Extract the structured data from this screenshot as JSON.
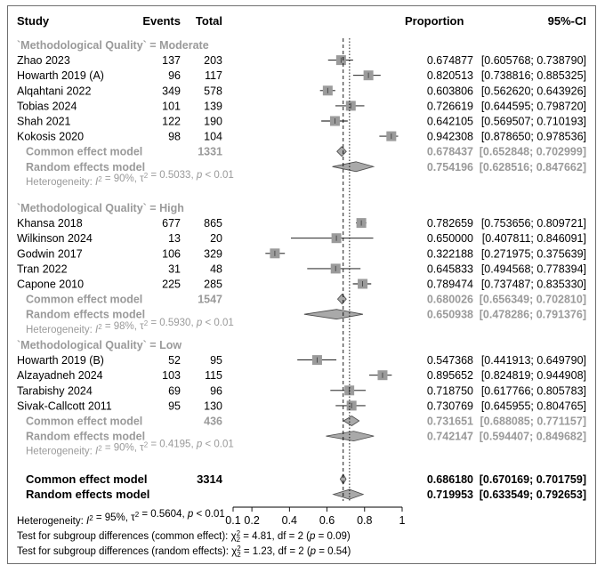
{
  "header": {
    "study": "Study",
    "events": "Events",
    "total": "Total",
    "proportion": "Proportion",
    "ci": "95%-CI"
  },
  "chart_data": {
    "type": "forest",
    "x_ticks": [
      "0.1",
      "0.2",
      "0.4",
      "0.6",
      "0.8",
      "1"
    ],
    "x_tick_values": [
      0.1,
      0.2,
      0.4,
      0.6,
      0.8,
      1.0
    ],
    "xlim": [
      0.1,
      1.0
    ],
    "common_line": 0.68618,
    "random_line": 0.719953,
    "colors": {
      "square": "#9b9b9b",
      "diamond": "#a9a9a9",
      "summary_text": "#9a9a9a",
      "line": "#000000"
    },
    "groups": [
      {
        "label": "`Methodological Quality` = Moderate",
        "studies": [
          {
            "name": "Zhao 2023",
            "events": "137",
            "total": "203",
            "prop": 0.674877,
            "lo": 0.605768,
            "hi": 0.73879,
            "prop_text": "0.674877",
            "ci_text": "[0.605768; 0.738790]"
          },
          {
            "name": "Howarth 2019 (A)",
            "events": "96",
            "total": "117",
            "prop": 0.820513,
            "lo": 0.738816,
            "hi": 0.885325,
            "prop_text": "0.820513",
            "ci_text": "[0.738816; 0.885325]"
          },
          {
            "name": "Alqahtani 2022",
            "events": "349",
            "total": "578",
            "prop": 0.603806,
            "lo": 0.56262,
            "hi": 0.643926,
            "prop_text": "0.603806",
            "ci_text": "[0.562620; 0.643926]"
          },
          {
            "name": "Tobias 2024",
            "events": "101",
            "total": "139",
            "prop": 0.726619,
            "lo": 0.644595,
            "hi": 0.79872,
            "prop_text": "0.726619",
            "ci_text": "[0.644595; 0.798720]"
          },
          {
            "name": "Shah 2021",
            "events": "122",
            "total": "190",
            "prop": 0.642105,
            "lo": 0.569507,
            "hi": 0.710193,
            "prop_text": "0.642105",
            "ci_text": "[0.569507; 0.710193]"
          },
          {
            "name": "Kokosis 2020",
            "events": "98",
            "total": "104",
            "prop": 0.942308,
            "lo": 0.87865,
            "hi": 0.978536,
            "prop_text": "0.942308",
            "ci_text": "[0.878650; 0.978536]"
          }
        ],
        "common": {
          "label": "Common effect model",
          "total": "1331",
          "prop": 0.678437,
          "lo": 0.652848,
          "hi": 0.702999,
          "prop_text": "0.678437",
          "ci_text": "[0.652848; 0.702999]"
        },
        "random": {
          "label": "Random effects model",
          "prop": 0.754196,
          "lo": 0.628516,
          "hi": 0.847662,
          "prop_text": "0.754196",
          "ci_text": "[0.628516; 0.847662]"
        },
        "heterogeneity": {
          "i2": "90%",
          "tau2": "0.5033",
          "p": "< 0.01"
        }
      },
      {
        "label": "`Methodological Quality` = High",
        "studies": [
          {
            "name": "Khansa 2018",
            "events": "677",
            "total": "865",
            "prop": 0.782659,
            "lo": 0.753656,
            "hi": 0.809721,
            "prop_text": "0.782659",
            "ci_text": "[0.753656; 0.809721]"
          },
          {
            "name": "Wilkinson 2024",
            "events": "13",
            "total": "20",
            "prop": 0.65,
            "lo": 0.407811,
            "hi": 0.846091,
            "prop_text": "0.650000",
            "ci_text": "[0.407811; 0.846091]"
          },
          {
            "name": "Godwin 2017",
            "events": "106",
            "total": "329",
            "prop": 0.322188,
            "lo": 0.271975,
            "hi": 0.375639,
            "prop_text": "0.322188",
            "ci_text": "[0.271975; 0.375639]"
          },
          {
            "name": "Tran 2022",
            "events": "31",
            "total": "48",
            "prop": 0.645833,
            "lo": 0.494568,
            "hi": 0.778394,
            "prop_text": "0.645833",
            "ci_text": "[0.494568; 0.778394]"
          },
          {
            "name": "Capone 2010",
            "events": "225",
            "total": "285",
            "prop": 0.789474,
            "lo": 0.737487,
            "hi": 0.83533,
            "prop_text": "0.789474",
            "ci_text": "[0.737487; 0.835330]"
          }
        ],
        "common": {
          "label": "Common effect model",
          "total": "1547",
          "prop": 0.680026,
          "lo": 0.656349,
          "hi": 0.70281,
          "prop_text": "0.680026",
          "ci_text": "[0.656349; 0.702810]"
        },
        "random": {
          "label": "Random effects model",
          "prop": 0.650938,
          "lo": 0.478286,
          "hi": 0.791376,
          "prop_text": "0.650938",
          "ci_text": "[0.478286; 0.791376]"
        },
        "heterogeneity": {
          "i2": "98%",
          "tau2": "0.5930",
          "p": "< 0.01"
        }
      },
      {
        "label": "`Methodological Quality` = Low",
        "studies": [
          {
            "name": "Howarth 2019 (B)",
            "events": "52",
            "total": "95",
            "prop": 0.547368,
            "lo": 0.441913,
            "hi": 0.64979,
            "prop_text": "0.547368",
            "ci_text": "[0.441913; 0.649790]"
          },
          {
            "name": "Alzayadneh 2024",
            "events": "103",
            "total": "115",
            "prop": 0.895652,
            "lo": 0.824819,
            "hi": 0.944908,
            "prop_text": "0.895652",
            "ci_text": "[0.824819; 0.944908]"
          },
          {
            "name": "Tarabishy 2024",
            "events": "69",
            "total": "96",
            "prop": 0.71875,
            "lo": 0.617766,
            "hi": 0.805783,
            "prop_text": "0.718750",
            "ci_text": "[0.617766; 0.805783]"
          },
          {
            "name": "Sivak-Callcott 2011",
            "events": "95",
            "total": "130",
            "prop": 0.730769,
            "lo": 0.645955,
            "hi": 0.804765,
            "prop_text": "0.730769",
            "ci_text": "[0.645955; 0.804765]"
          }
        ],
        "common": {
          "label": "Common effect model",
          "total": "436",
          "prop": 0.731651,
          "lo": 0.688085,
          "hi": 0.771157,
          "prop_text": "0.731651",
          "ci_text": "[0.688085; 0.771157]"
        },
        "random": {
          "label": "Random effects model",
          "prop": 0.742147,
          "lo": 0.594407,
          "hi": 0.849682,
          "prop_text": "0.742147",
          "ci_text": "[0.594407; 0.849682]"
        },
        "heterogeneity": {
          "i2": "90%",
          "tau2": "0.4195",
          "p": "< 0.01"
        }
      }
    ],
    "overall": {
      "common": {
        "label": "Common effect model",
        "total": "3314",
        "prop": 0.68618,
        "lo": 0.670169,
        "hi": 0.701759,
        "prop_text": "0.686180",
        "ci_text": "[0.670169; 0.701759]"
      },
      "random": {
        "label": "Random effects model",
        "prop": 0.719953,
        "lo": 0.633549,
        "hi": 0.792653,
        "prop_text": "0.719953",
        "ci_text": "[0.633549; 0.792653]"
      },
      "heterogeneity": {
        "i2": "95%",
        "tau2": "0.5604",
        "p": "< 0.01"
      }
    },
    "subgroup_tests": [
      {
        "label": "Test for subgroup differences (common effect):",
        "chi2": "4.81",
        "df": "2",
        "p": "0.09"
      },
      {
        "label": "Test for subgroup differences (random effects):",
        "chi2": "1.23",
        "df": "2",
        "p": "0.54"
      }
    ]
  }
}
